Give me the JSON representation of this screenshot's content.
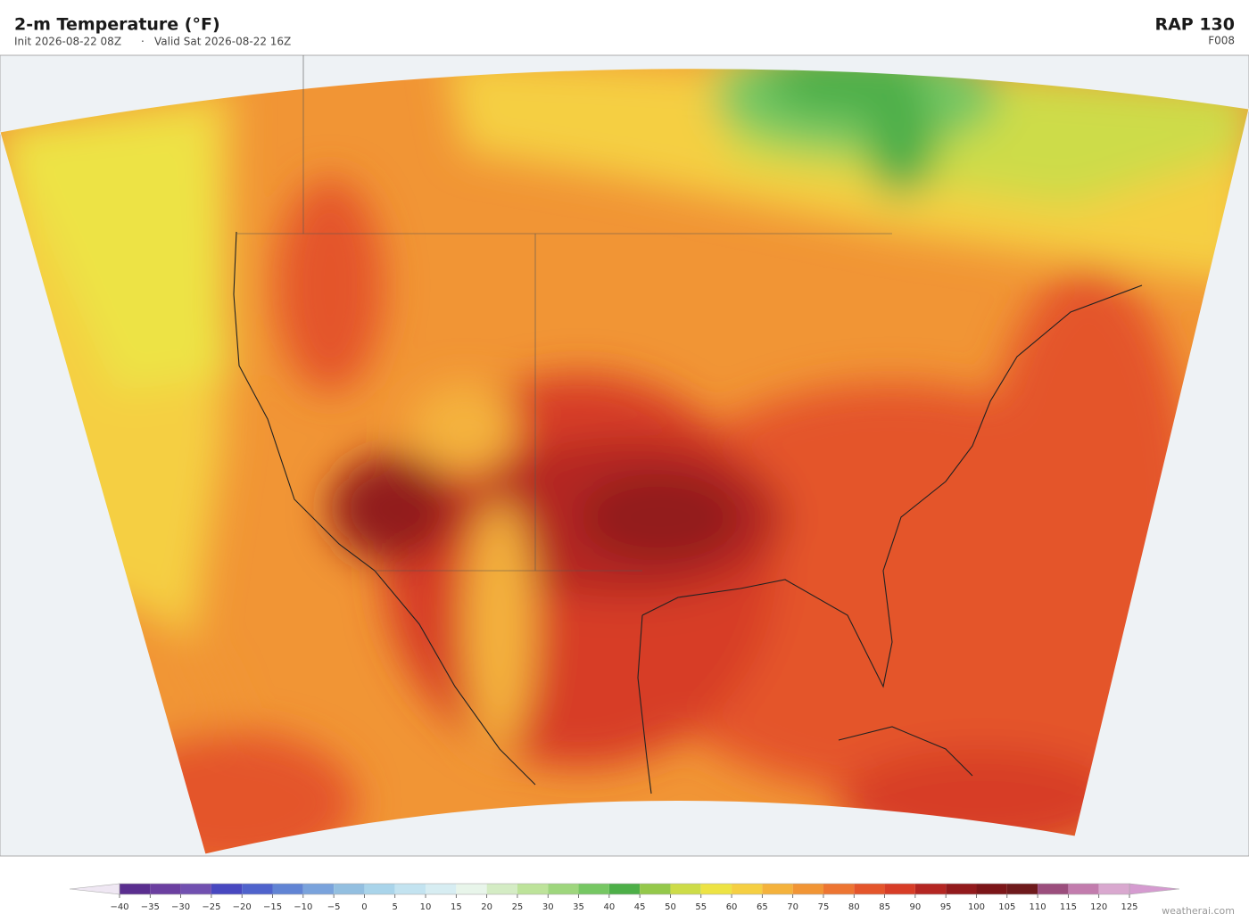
{
  "header": {
    "title": "2-m Temperature  (°F)",
    "init": "Init 2026-08-22 08Z",
    "separator": "·",
    "valid": "Valid Sat 2026-08-22 16Z",
    "model": "RAP  130",
    "forecast_hour": "F008"
  },
  "colorbar": {
    "ticks": [
      {
        "value": -40,
        "label": "−40"
      },
      {
        "value": -35,
        "label": "−35"
      },
      {
        "value": -30,
        "label": "−30"
      },
      {
        "value": -25,
        "label": "−25"
      },
      {
        "value": -20,
        "label": "−20"
      },
      {
        "value": -15,
        "label": "−15"
      },
      {
        "value": -10,
        "label": "−10"
      },
      {
        "value": -5,
        "label": "−5"
      },
      0,
      5,
      10,
      15,
      20,
      25,
      30,
      35,
      40,
      45,
      50,
      55,
      60,
      65,
      70,
      75,
      80,
      85,
      90,
      95,
      100,
      105,
      110,
      115,
      120,
      125
    ],
    "colors": [
      "#5a2e8f",
      "#6b3fa0",
      "#7150b0",
      "#4848c0",
      "#4f63cc",
      "#6184d4",
      "#7aa3dc",
      "#93bfe0",
      "#a9d4ea",
      "#c3e3f0",
      "#d7edf2",
      "#e8f5ea",
      "#d4ecc4",
      "#bde39a",
      "#9ed67d",
      "#76c763",
      "#4daf48",
      "#94c84a",
      "#cddc48",
      "#ede344",
      "#f5cf42",
      "#f4b23c",
      "#f19535",
      "#ed7532",
      "#e4552b",
      "#d73d27",
      "#b42622",
      "#921a1c",
      "#7b1518",
      "#6e1a1c",
      "#9b4e7d",
      "#c27cad",
      "#d9a8cf"
    ]
  },
  "footer": {
    "credit": "weatherai.com"
  }
}
